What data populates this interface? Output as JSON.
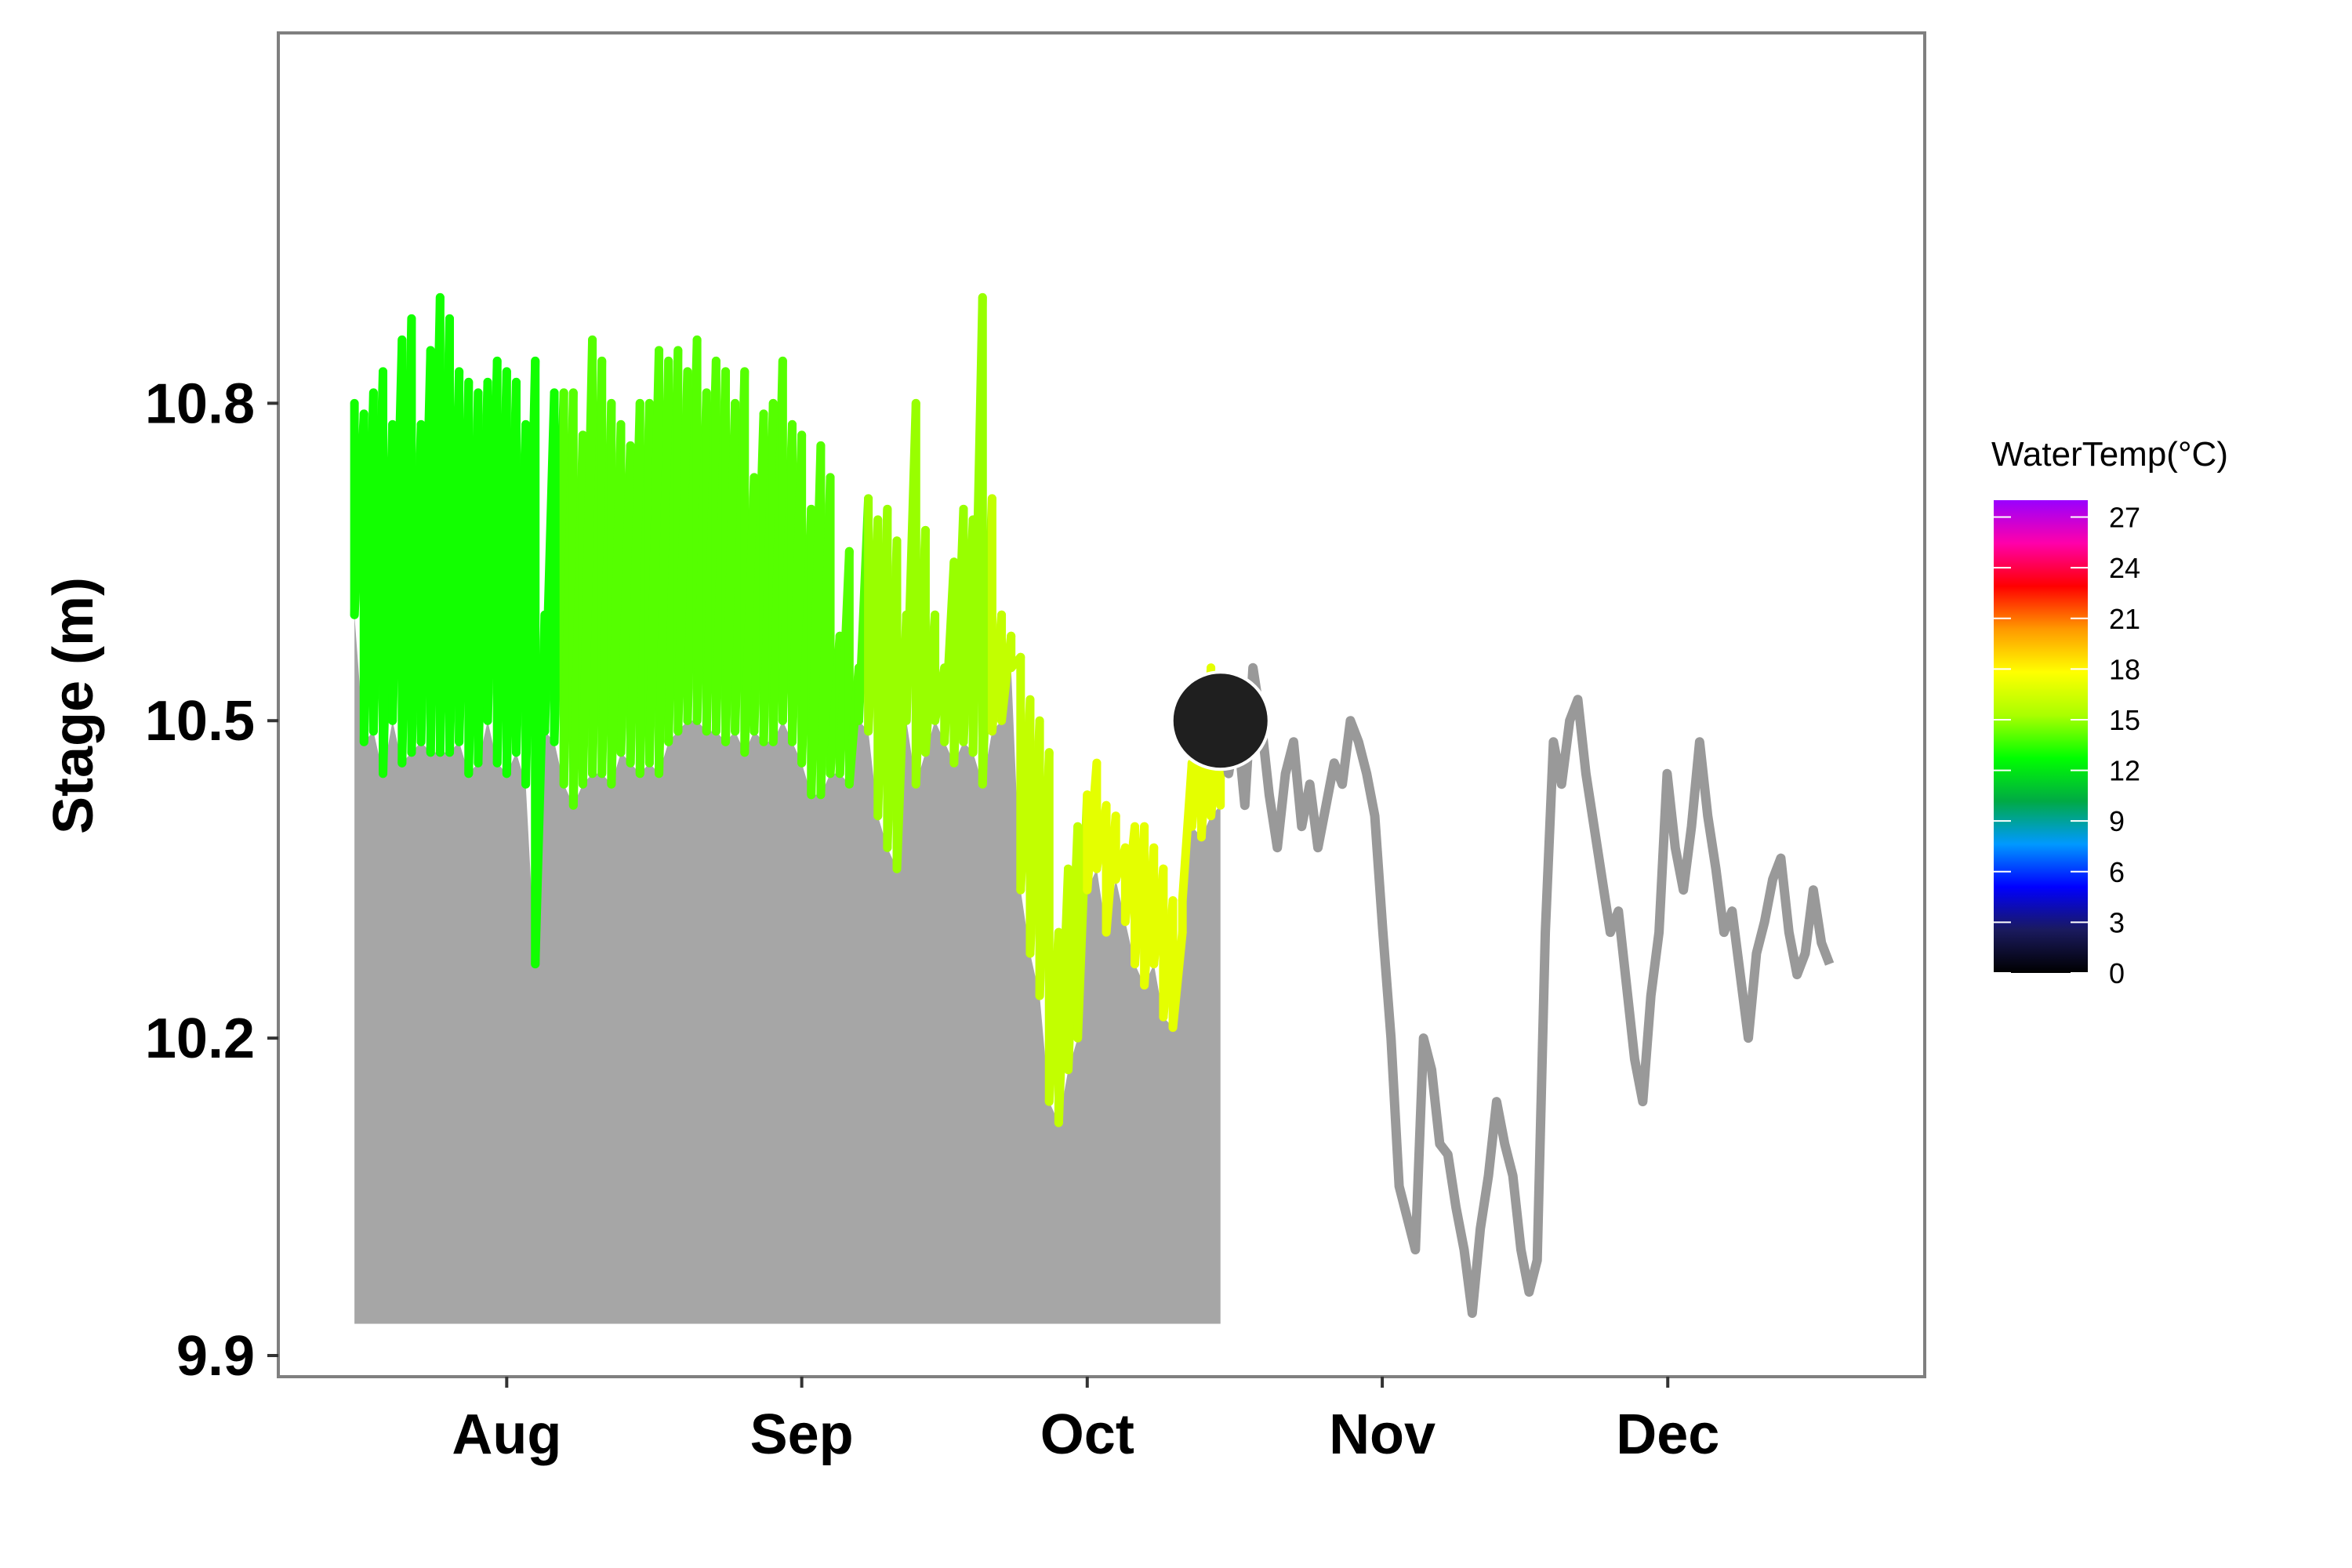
{
  "chart_data": {
    "type": "line",
    "title": "",
    "xlabel": "",
    "ylabel": "Stage (m)",
    "ylim": [
      9.88,
      11.15
    ],
    "xlim": [
      "2014-07-08",
      "2014-12-28"
    ],
    "x_ticks": [
      {
        "label": "Aug",
        "date": "2014-08-01"
      },
      {
        "label": "Sep",
        "date": "2014-09-01"
      },
      {
        "label": "Oct",
        "date": "2014-10-01"
      },
      {
        "label": "Nov",
        "date": "2014-11-01"
      },
      {
        "label": "Dec",
        "date": "2014-12-01"
      }
    ],
    "y_ticks": [
      9.9,
      10.2,
      10.5,
      10.8
    ],
    "grid": false,
    "legend": {
      "title": "WaterTemp(°C)",
      "placement": "right",
      "min": 0,
      "max": 28,
      "ticks": [
        0,
        3,
        6,
        9,
        12,
        15,
        18,
        21,
        24,
        27
      ],
      "colors": [
        "#000000",
        "#1a1a5e",
        "#0000ff",
        "#0099ff",
        "#00aa44",
        "#00ff00",
        "#aaff00",
        "#ffff00",
        "#ff9900",
        "#ff0000",
        "#ff00aa",
        "#9900ff"
      ]
    },
    "observed_series": {
      "name": "observed",
      "colored_by": "WaterTemp",
      "x_start": "2014-07-16",
      "x_end": "2014-10-15",
      "upper_envelope": [
        10.8,
        10.79,
        10.81,
        10.83,
        10.78,
        10.86,
        10.88,
        10.78,
        10.85,
        10.9,
        10.88,
        10.83,
        10.82,
        10.81,
        10.82,
        10.84,
        10.83,
        10.82,
        10.78,
        10.84,
        10.6,
        10.81,
        10.81,
        10.81,
        10.77,
        10.86,
        10.84,
        10.8,
        10.78,
        10.76,
        10.8,
        10.8,
        10.85,
        10.84,
        10.85,
        10.83,
        10.86,
        10.81,
        10.84,
        10.83,
        10.8,
        10.83,
        10.73,
        10.79,
        10.8,
        10.84,
        10.78,
        10.77,
        10.7,
        10.76,
        10.73,
        10.58,
        10.66,
        10.55,
        10.71,
        10.69,
        10.7,
        10.67,
        10.6,
        10.8,
        10.68,
        10.6,
        10.55,
        10.65,
        10.7,
        10.69,
        10.9,
        10.71,
        10.6,
        10.58,
        10.56,
        10.52,
        10.5,
        10.47,
        10.3,
        10.36,
        10.4,
        10.43,
        10.46,
        10.42,
        10.41,
        10.38,
        10.4,
        10.4,
        10.38,
        10.36,
        10.33,
        10.3,
        10.46,
        10.5,
        10.55,
        10.5
      ],
      "lower_envelope": [
        10.6,
        10.48,
        10.49,
        10.45,
        10.5,
        10.46,
        10.47,
        10.48,
        10.47,
        10.47,
        10.47,
        10.48,
        10.45,
        10.46,
        10.5,
        10.46,
        10.45,
        10.47,
        10.44,
        10.27,
        10.49,
        10.48,
        10.44,
        10.42,
        10.44,
        10.45,
        10.45,
        10.44,
        10.47,
        10.46,
        10.45,
        10.46,
        10.45,
        10.48,
        10.49,
        10.5,
        10.5,
        10.49,
        10.49,
        10.48,
        10.49,
        10.47,
        10.49,
        10.48,
        10.48,
        10.5,
        10.48,
        10.46,
        10.43,
        10.43,
        10.45,
        10.45,
        10.44,
        10.5,
        10.49,
        10.41,
        10.38,
        10.36,
        10.5,
        10.44,
        10.47,
        10.5,
        10.48,
        10.46,
        10.48,
        10.47,
        10.44,
        10.49,
        10.5,
        10.55,
        10.34,
        10.28,
        10.24,
        10.14,
        10.12,
        10.17,
        10.2,
        10.34,
        10.36,
        10.3,
        10.35,
        10.31,
        10.27,
        10.25,
        10.27,
        10.22,
        10.21,
        10.33,
        10.4,
        10.39,
        10.41,
        10.42
      ],
      "temperature_c": [
        13,
        13,
        13,
        13,
        13,
        13,
        13,
        13,
        13,
        13,
        13,
        13,
        13,
        13,
        13,
        13,
        13,
        13,
        13,
        13,
        13,
        13,
        14,
        14,
        14,
        14,
        14,
        14,
        14,
        14,
        14,
        14,
        14,
        14,
        14,
        14,
        14,
        14,
        14,
        14,
        14,
        14,
        14,
        14,
        14,
        14,
        14,
        14,
        14,
        14,
        14,
        14,
        14,
        14,
        15,
        15,
        15,
        15,
        15,
        15,
        15,
        15,
        15,
        15,
        15,
        15,
        15,
        16,
        16,
        16,
        16,
        16,
        16,
        16,
        16,
        16,
        16,
        17,
        17,
        17,
        17,
        17,
        17,
        17,
        17,
        17,
        17,
        17,
        17,
        17,
        17,
        17
      ]
    },
    "forecast_series": {
      "name": "forecast",
      "color": "#999999",
      "x_start": "2014-10-15",
      "x_end": "2014-12-18",
      "y": [
        10.5,
        10.45,
        10.5,
        10.42,
        10.55,
        10.5,
        10.43,
        10.38,
        10.45,
        10.48,
        10.4,
        10.44,
        10.38,
        10.42,
        10.46,
        10.44,
        10.5,
        10.48,
        10.45,
        10.41,
        10.3,
        10.2,
        10.06,
        10.03,
        10.0,
        10.2,
        10.17,
        10.1,
        10.09,
        10.04,
        10.0,
        9.94,
        10.02,
        10.07,
        10.14,
        10.1,
        10.07,
        10.0,
        9.96,
        9.99,
        10.3,
        10.48,
        10.44,
        10.5,
        10.52,
        10.45,
        10.4,
        10.35,
        10.3,
        10.32,
        10.25,
        10.18,
        10.14,
        10.24,
        10.3,
        10.45,
        10.38,
        10.34,
        10.4,
        10.48,
        10.41,
        10.36,
        10.3,
        10.32,
        10.26,
        10.2,
        10.28,
        10.31,
        10.35,
        10.37,
        10.3,
        10.26,
        10.28,
        10.34,
        10.29,
        10.27
      ]
    },
    "marker": {
      "date": "2014-10-15",
      "y": 10.5,
      "color": "#1f1f1f"
    }
  }
}
